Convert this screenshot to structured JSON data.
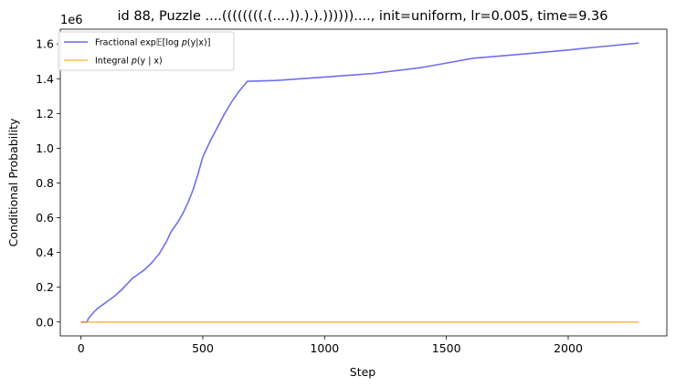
{
  "chart_data": {
    "type": "line",
    "title": "id 88, Puzzle ....((((((((.(....)).).).))))))...., init=uniform, lr=0.005, time=9.36",
    "xlabel": "Step",
    "ylabel": "Conditional Probability",
    "y_offset_label": "1e6",
    "xlim": [
      -85,
      2405
    ],
    "ylim": [
      -0.08,
      1.685
    ],
    "y_multiplier": 1000000,
    "x_ticks": [
      0,
      500,
      1000,
      1500,
      2000
    ],
    "x_tick_labels": [
      "0",
      "500",
      "1000",
      "1500",
      "2000"
    ],
    "y_ticks": [
      0.0,
      0.2,
      0.4,
      0.6,
      0.8,
      1.0,
      1.2,
      1.4,
      1.6
    ],
    "y_tick_labels": [
      "0.0",
      "0.2",
      "0.4",
      "0.6",
      "0.8",
      "1.0",
      "1.2",
      "1.4",
      "1.6"
    ],
    "grid": false,
    "legend_placement": "top-left",
    "series": [
      {
        "name": "Fractional exp𝔼[log p(y|x)]",
        "color": "#6666ee",
        "x": [
          0,
          25,
          30,
          40,
          55,
          70,
          90,
          110,
          130,
          150,
          170,
          190,
          210,
          230,
          260,
          290,
          320,
          350,
          370,
          380,
          400,
          420,
          440,
          460,
          480,
          500,
          510,
          530,
          560,
          590,
          620,
          650,
          683,
          800,
          1000,
          1200,
          1400,
          1500,
          1610,
          1800,
          2000,
          2100,
          2290
        ],
        "values": [
          0.0,
          0.0,
          0.02,
          0.035,
          0.06,
          0.08,
          0.1,
          0.12,
          0.14,
          0.165,
          0.19,
          0.22,
          0.25,
          0.27,
          0.3,
          0.34,
          0.39,
          0.46,
          0.52,
          0.54,
          0.58,
          0.63,
          0.69,
          0.76,
          0.85,
          0.95,
          0.98,
          1.04,
          1.12,
          1.2,
          1.27,
          1.33,
          1.385,
          1.39,
          1.41,
          1.43,
          1.465,
          1.49,
          1.518,
          1.54,
          1.565,
          1.58,
          1.605
        ]
      },
      {
        "name": "Integral p(y | x)",
        "color": "#ffa500",
        "x": [
          0,
          2290
        ],
        "values": [
          0.0,
          0.0
        ]
      }
    ]
  },
  "legend": {
    "items": [
      {
        "prefix": "Fractional exp",
        "math": "𝔼[log ",
        "var": "p",
        "suffix": "(y|x)]"
      },
      {
        "prefix": "Integral ",
        "math": "",
        "var": "p",
        "suffix": "(y | x)"
      }
    ]
  }
}
